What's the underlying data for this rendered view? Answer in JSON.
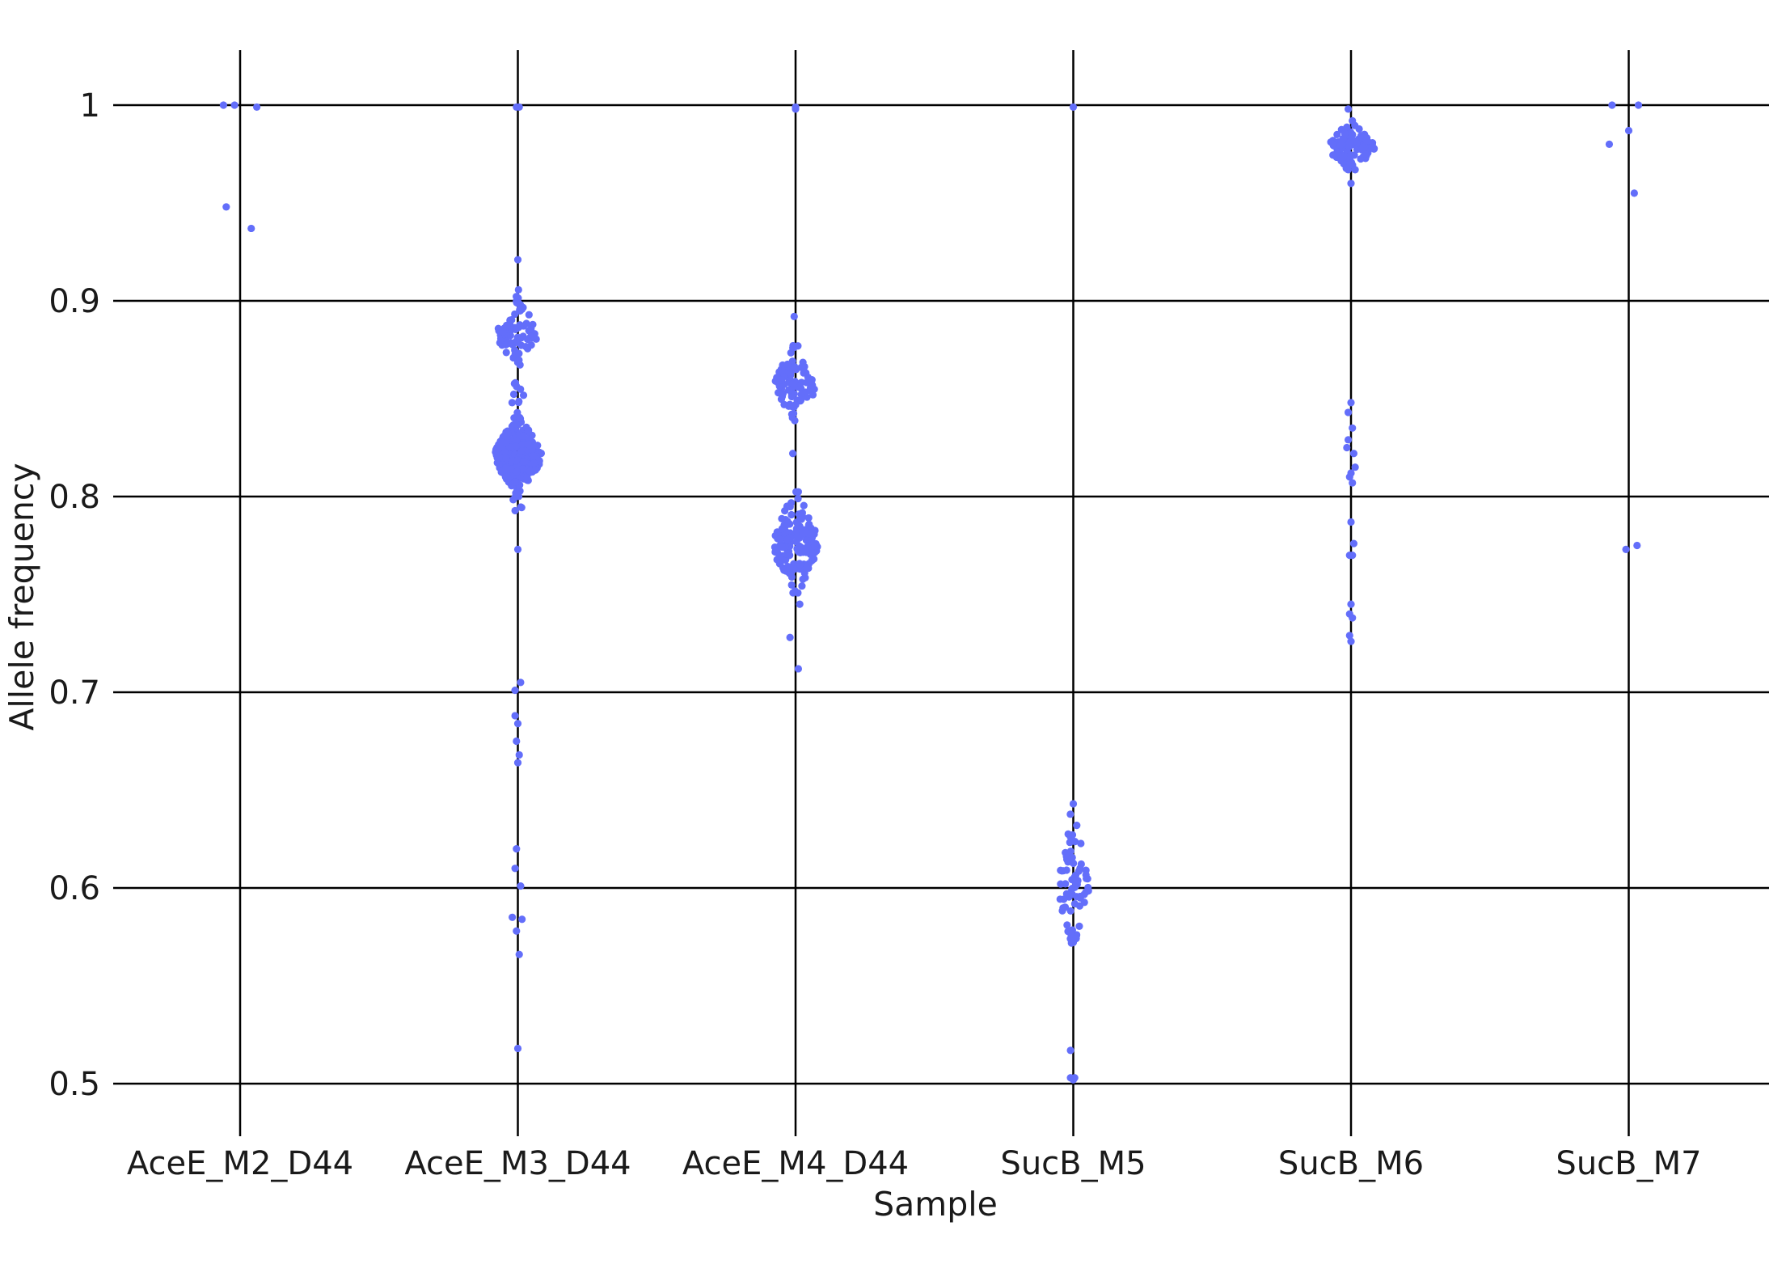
{
  "chart_data": {
    "type": "scatter",
    "xlabel": "Sample",
    "ylabel": "Allele frequency",
    "categories": [
      "AceE_M2_D44",
      "AceE_M3_D44",
      "AceE_M4_D44",
      "SucB_M5",
      "SucB_M6",
      "SucB_M7"
    ],
    "ylim": [
      0.48,
      1.03
    ],
    "yticks": [
      0.5,
      0.6,
      0.7,
      0.8,
      0.9,
      1
    ],
    "ytick_labels": [
      "0.5",
      "0.6",
      "0.7",
      "0.8",
      "0.9",
      "1"
    ],
    "grid": true,
    "point_color": "#636efa",
    "series": [
      {
        "category": "AceE_M2_D44",
        "points": [
          {
            "dx": -0.06,
            "y": 1.0
          },
          {
            "dx": -0.02,
            "y": 1.0
          },
          {
            "dx": 0.06,
            "y": 0.999
          },
          {
            "dx": -0.05,
            "y": 0.948
          },
          {
            "dx": 0.04,
            "y": 0.937
          }
        ]
      },
      {
        "category": "AceE_M3_D44",
        "clusters": [
          {
            "y": 0.821,
            "sd": 0.008,
            "n": 300,
            "dxw": 0.085
          },
          {
            "y": 0.883,
            "sd": 0.007,
            "n": 75,
            "dxw": 0.075
          },
          {
            "y": 0.898,
            "sd": 0.004,
            "n": 6,
            "dxw": 0.02
          },
          {
            "y": 0.847,
            "sd": 0.007,
            "n": 12,
            "dxw": 0.025
          },
          {
            "y": 0.796,
            "sd": 0.004,
            "n": 8,
            "dxw": 0.02
          }
        ],
        "points": [
          {
            "dx": -0.005,
            "y": 0.999
          },
          {
            "dx": 0.005,
            "y": 0.999
          },
          {
            "dx": 0.0,
            "y": 0.921
          },
          {
            "dx": 0.0,
            "y": 0.773
          },
          {
            "dx": 0.01,
            "y": 0.705
          },
          {
            "dx": -0.01,
            "y": 0.701
          },
          {
            "dx": -0.01,
            "y": 0.688
          },
          {
            "dx": 0.0,
            "y": 0.684
          },
          {
            "dx": -0.005,
            "y": 0.675
          },
          {
            "dx": 0.005,
            "y": 0.668
          },
          {
            "dx": 0.0,
            "y": 0.664
          },
          {
            "dx": -0.005,
            "y": 0.62
          },
          {
            "dx": -0.01,
            "y": 0.61
          },
          {
            "dx": 0.01,
            "y": 0.601
          },
          {
            "dx": -0.02,
            "y": 0.585
          },
          {
            "dx": 0.015,
            "y": 0.584
          },
          {
            "dx": -0.005,
            "y": 0.578
          },
          {
            "dx": 0.005,
            "y": 0.566
          },
          {
            "dx": 0.0,
            "y": 0.518
          }
        ]
      },
      {
        "category": "AceE_M4_D44",
        "clusters": [
          {
            "y": 0.776,
            "sd": 0.011,
            "n": 160,
            "dxw": 0.08
          },
          {
            "y": 0.858,
            "sd": 0.008,
            "n": 85,
            "dxw": 0.075
          }
        ],
        "points": [
          {
            "dx": 0.0,
            "y": 0.999
          },
          {
            "dx": 0.0,
            "y": 0.998
          },
          {
            "dx": -0.005,
            "y": 0.892
          },
          {
            "dx": -0.01,
            "y": 0.822
          },
          {
            "dx": 0.015,
            "y": 0.745
          },
          {
            "dx": -0.02,
            "y": 0.728
          },
          {
            "dx": 0.01,
            "y": 0.712
          }
        ]
      },
      {
        "category": "SucB_M5",
        "clusters": [
          {
            "y": 0.602,
            "sd": 0.015,
            "n": 70,
            "dxw": 0.06
          }
        ],
        "points": [
          {
            "dx": 0.0,
            "y": 0.999
          },
          {
            "dx": 0.0,
            "y": 0.643
          },
          {
            "dx": -0.01,
            "y": 0.517
          },
          {
            "dx": -0.01,
            "y": 0.503
          },
          {
            "dx": 0.005,
            "y": 0.503
          },
          {
            "dx": 0.0,
            "y": 0.502
          }
        ]
      },
      {
        "category": "SucB_M6",
        "clusters": [
          {
            "y": 0.979,
            "sd": 0.005,
            "n": 110,
            "dxw": 0.085
          }
        ],
        "points": [
          {
            "dx": -0.01,
            "y": 0.998
          },
          {
            "dx": 0.005,
            "y": 0.992
          },
          {
            "dx": 0.0,
            "y": 0.96
          },
          {
            "dx": 0.0,
            "y": 0.848
          },
          {
            "dx": -0.01,
            "y": 0.843
          },
          {
            "dx": 0.005,
            "y": 0.835
          },
          {
            "dx": -0.01,
            "y": 0.829
          },
          {
            "dx": -0.015,
            "y": 0.825
          },
          {
            "dx": 0.01,
            "y": 0.822
          },
          {
            "dx": 0.015,
            "y": 0.815
          },
          {
            "dx": 0.0,
            "y": 0.812
          },
          {
            "dx": -0.005,
            "y": 0.81
          },
          {
            "dx": 0.005,
            "y": 0.807
          },
          {
            "dx": 0.0,
            "y": 0.787
          },
          {
            "dx": 0.01,
            "y": 0.776
          },
          {
            "dx": -0.005,
            "y": 0.77
          },
          {
            "dx": 0.005,
            "y": 0.77
          },
          {
            "dx": 0.0,
            "y": 0.745
          },
          {
            "dx": -0.005,
            "y": 0.74
          },
          {
            "dx": 0.005,
            "y": 0.738
          },
          {
            "dx": -0.005,
            "y": 0.729
          },
          {
            "dx": 0.0,
            "y": 0.726
          }
        ]
      },
      {
        "category": "SucB_M7",
        "points": [
          {
            "dx": -0.06,
            "y": 1.0
          },
          {
            "dx": 0.035,
            "y": 1.0
          },
          {
            "dx": 0.0,
            "y": 0.987
          },
          {
            "dx": -0.07,
            "y": 0.98
          },
          {
            "dx": 0.02,
            "y": 0.955
          },
          {
            "dx": -0.01,
            "y": 0.773
          },
          {
            "dx": 0.03,
            "y": 0.775
          }
        ]
      }
    ]
  }
}
